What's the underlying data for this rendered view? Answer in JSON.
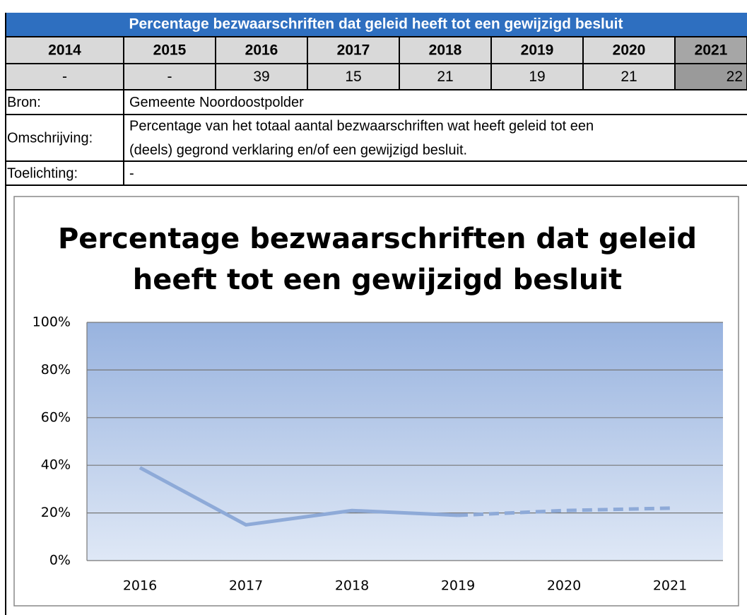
{
  "table": {
    "title": "Percentage bezwaarschriften dat geleid heeft tot een gewijzigd besluit",
    "years": [
      "2014",
      "2015",
      "2016",
      "2017",
      "2018",
      "2019",
      "2020",
      "2021"
    ],
    "values": [
      "-",
      "-",
      "39",
      "15",
      "21",
      "19",
      "21",
      "22"
    ],
    "rows": [
      {
        "label": "Bron:",
        "lines": [
          "Gemeente Noordoostpolder"
        ]
      },
      {
        "label": "Omschrijving:",
        "lines": [
          "Percentage van het totaal aantal bezwaarschriften wat heeft geleid tot een",
          "(deels) gegrond verklaring en/of een gewijzigd besluit."
        ]
      },
      {
        "label": "Toelichting:",
        "lines": [
          "-"
        ]
      }
    ]
  },
  "chart_data": {
    "type": "line",
    "title": [
      "Percentage bezwaarschriften dat geleid",
      "heeft tot een gewijzigd besluit"
    ],
    "categories": [
      "2016",
      "2017",
      "2018",
      "2019",
      "2020",
      "2021"
    ],
    "series": [
      {
        "color": "#8eaad8",
        "values": [
          39,
          15,
          21,
          19,
          null,
          null
        ]
      },
      {
        "color": "#8eaad8",
        "dashed": true,
        "values": [
          null,
          null,
          null,
          19,
          21,
          22
        ]
      }
    ],
    "ylim": [
      0,
      100
    ],
    "yticks": [
      {
        "value": 0,
        "label": "0%"
      },
      {
        "value": 20,
        "label": "20%"
      },
      {
        "value": 40,
        "label": "40%"
      },
      {
        "value": 60,
        "label": "60%"
      },
      {
        "value": 80,
        "label": "80%"
      },
      {
        "value": 100,
        "label": "100%"
      }
    ],
    "grid": true
  }
}
